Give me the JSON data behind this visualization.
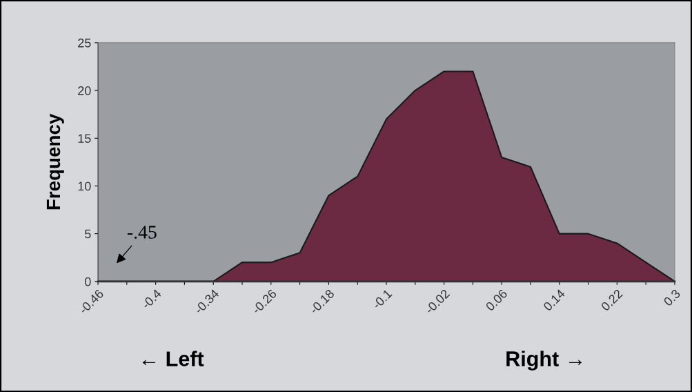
{
  "chart_data": {
    "type": "area",
    "ylabel": "Frequency",
    "categories": [
      "-0.46",
      null,
      "-0.4",
      null,
      "-0.34",
      null,
      "-0.26",
      null,
      "-0.18",
      null,
      "-0.1",
      null,
      "-0.02",
      null,
      "0.06",
      null,
      "0.14",
      null,
      "0.22",
      null,
      "0.3"
    ],
    "series": [
      {
        "color": "#6b2942",
        "values": [
          0,
          0,
          0,
          0,
          0,
          2,
          2,
          3,
          9,
          11,
          17,
          20,
          22,
          22,
          13,
          12,
          5,
          5,
          4,
          2,
          0
        ]
      }
    ],
    "ylim": [
      0,
      25
    ],
    "yticks": [
      0,
      5,
      10,
      15,
      20,
      25
    ],
    "grid": false,
    "legend": false,
    "annotations": [
      "-.45",
      "← Left",
      "Right →"
    ]
  }
}
